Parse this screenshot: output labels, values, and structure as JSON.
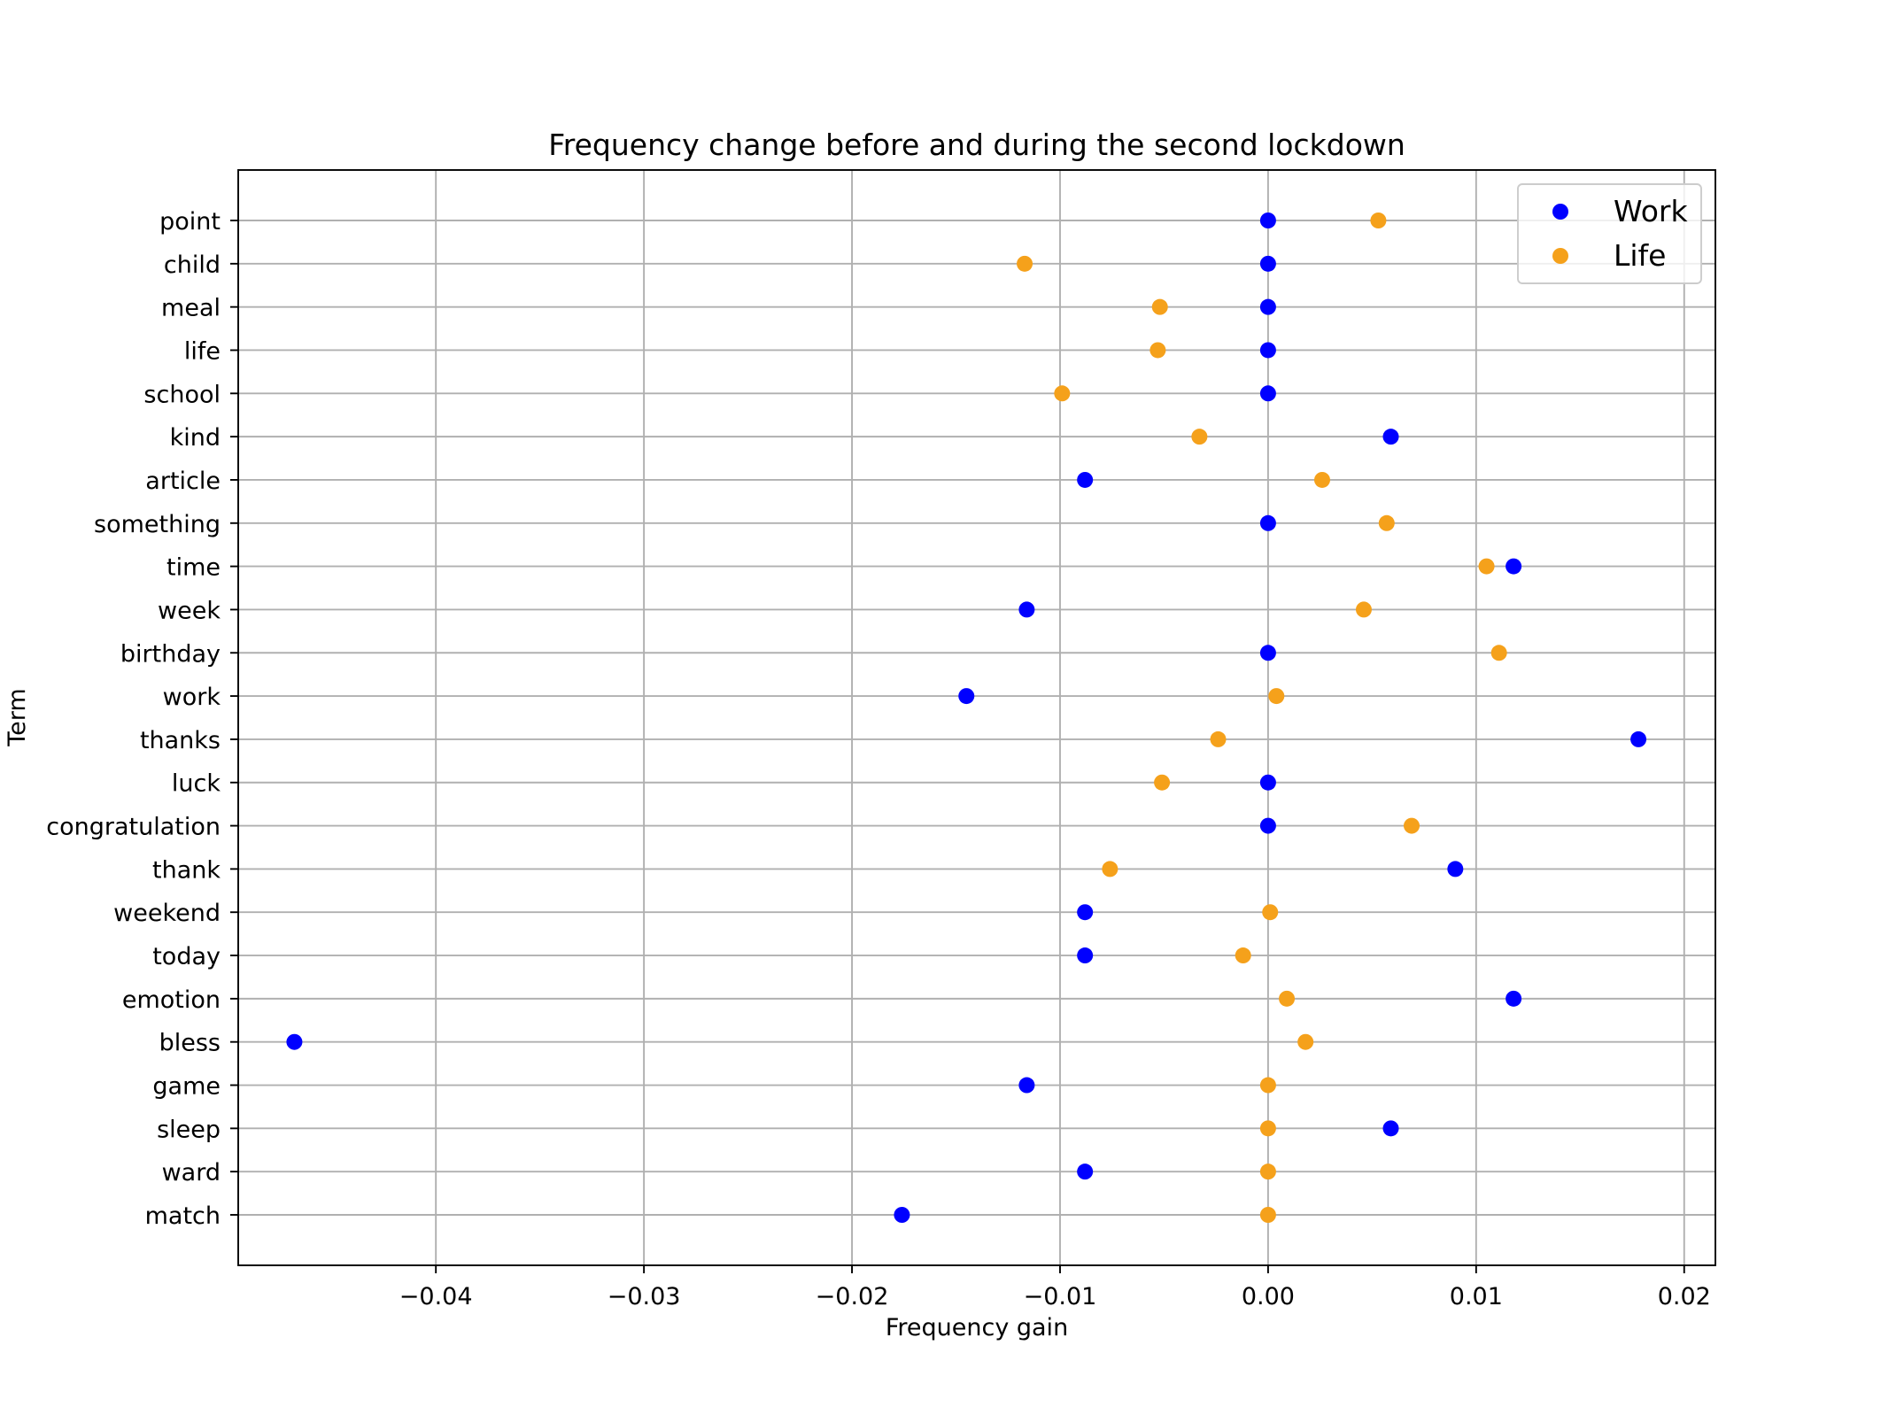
{
  "chart_data": {
    "type": "scatter",
    "title": "Frequency change before and during the second lockdown",
    "xlabel": "Frequency gain",
    "ylabel": "Term",
    "xlim": [
      -0.0495,
      0.0215
    ],
    "x_ticks": [
      -0.04,
      -0.03,
      -0.02,
      -0.01,
      0.0,
      0.01,
      0.02
    ],
    "x_tick_labels": [
      "−0.04",
      "−0.03",
      "−0.02",
      "−0.01",
      "0.00",
      "0.01",
      "0.02"
    ],
    "grid": true,
    "legend_position": "upper right",
    "categories": [
      "point",
      "child",
      "meal",
      "life",
      "school",
      "kind",
      "article",
      "something",
      "time",
      "week",
      "birthday",
      "work",
      "thanks",
      "luck",
      "congratulation",
      "thank",
      "weekend",
      "today",
      "emotion",
      "bless",
      "game",
      "sleep",
      "ward",
      "match"
    ],
    "series": [
      {
        "name": "Work",
        "color": "#0000ff",
        "values": [
          0.0,
          0.0,
          0.0,
          0.0,
          0.0,
          0.0059,
          -0.0088,
          0.0,
          0.0118,
          -0.0116,
          0.0,
          -0.0145,
          0.0178,
          0.0,
          0.0,
          0.009,
          -0.0088,
          -0.0088,
          0.0118,
          -0.0468,
          -0.0116,
          0.0059,
          -0.0088,
          -0.0176
        ]
      },
      {
        "name": "Life",
        "color": "#f5a11b",
        "values": [
          0.0053,
          -0.0117,
          -0.0052,
          -0.0053,
          -0.0099,
          -0.0033,
          0.0026,
          0.0057,
          0.0105,
          0.0046,
          0.0111,
          0.0004,
          -0.0024,
          -0.0051,
          0.0069,
          -0.0076,
          0.0001,
          -0.0012,
          0.0009,
          0.0018,
          0.0,
          0.0,
          0.0,
          0.0
        ]
      }
    ]
  }
}
